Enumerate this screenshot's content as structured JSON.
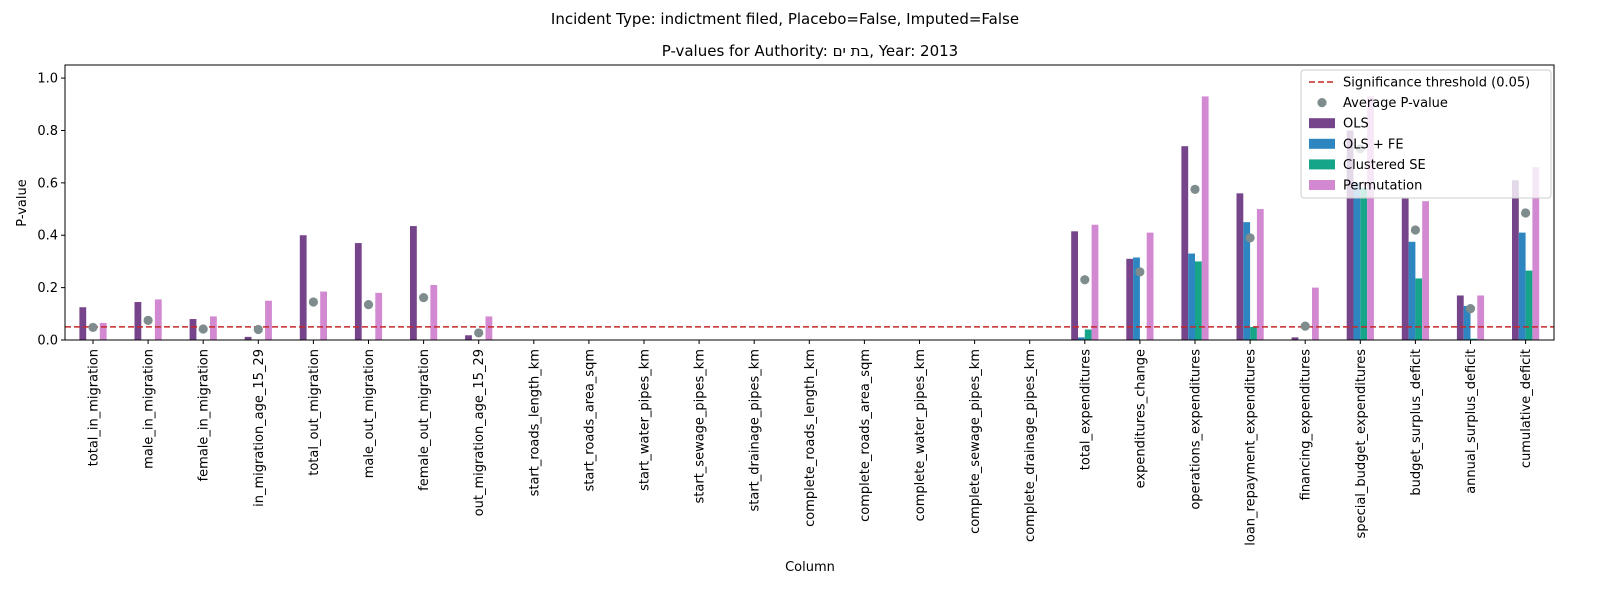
{
  "chart_data": {
    "type": "bar",
    "suptitle": "Incident Type: indictment filed, Placebo=False, Imputed=False",
    "title": "P-values for Authority: בת ים, Year: 2013",
    "xlabel": "Column",
    "ylabel": "P-value",
    "ylim": [
      0,
      1.05
    ],
    "yticks": [
      "0.0",
      "0.2",
      "0.4",
      "0.6",
      "0.8",
      "1.0"
    ],
    "legend_position": "top-right",
    "threshold": {
      "value": 0.05,
      "label": "Significance threshold (0.05)",
      "color": "#c62828"
    },
    "average": {
      "label": "Average P-value",
      "color": "#7f8c8d"
    },
    "categories": [
      "total_in_migration",
      "male_in_migration",
      "female_in_migration",
      "in_migration_age_15_29",
      "total_out_migration",
      "male_out_migration",
      "female_out_migration",
      "out_migration_age_15_29",
      "start_roads_length_km",
      "start_roads_area_sqm",
      "start_water_pipes_km",
      "start_sewage_pipes_km",
      "start_drainage_pipes_km",
      "complete_roads_length_km",
      "complete_roads_area_sqm",
      "complete_water_pipes_km",
      "complete_sewage_pipes_km",
      "complete_drainage_pipes_km",
      "total_expenditures",
      "expenditures_change",
      "operations_expenditures",
      "loan_repayment_expenditures",
      "financing_expenditures",
      "special_budget_expenditures",
      "budget_surplus_deficit",
      "annual_surplus_deficit",
      "cumulative_deficit"
    ],
    "series": [
      {
        "name": "OLS",
        "color": "#76448a",
        "values": [
          0.125,
          0.145,
          0.08,
          0.012,
          0.4,
          0.37,
          0.435,
          0.018,
          null,
          null,
          null,
          null,
          null,
          null,
          null,
          null,
          null,
          null,
          0.415,
          0.31,
          0.74,
          0.56,
          0.01,
          0.8,
          0.54,
          0.17,
          0.61
        ]
      },
      {
        "name": "OLS + FE",
        "color": "#2e86c1",
        "values": [
          0.0,
          0.0,
          0.0,
          0.0,
          0.0,
          0.0,
          0.0,
          0.0,
          null,
          null,
          null,
          null,
          null,
          null,
          null,
          null,
          null,
          null,
          0.01,
          0.315,
          0.33,
          0.45,
          0.0,
          0.6,
          0.375,
          0.13,
          0.41
        ]
      },
      {
        "name": "Clustered SE",
        "color": "#17a589",
        "values": [
          0.0,
          0.0,
          0.0,
          0.0,
          0.0,
          0.0,
          0.0,
          0.0,
          null,
          null,
          null,
          null,
          null,
          null,
          null,
          null,
          null,
          null,
          0.04,
          0.0,
          0.3,
          0.05,
          0.0,
          0.58,
          0.235,
          0.005,
          0.265
        ]
      },
      {
        "name": "Permutation",
        "color": "#d289d1",
        "values": [
          0.065,
          0.155,
          0.09,
          0.15,
          0.185,
          0.18,
          0.21,
          0.09,
          null,
          null,
          null,
          null,
          null,
          null,
          null,
          null,
          null,
          null,
          0.44,
          0.41,
          0.93,
          0.5,
          0.2,
          0.93,
          0.53,
          0.17,
          0.66
        ]
      }
    ],
    "average_values": [
      0.048,
      0.075,
      0.042,
      0.04,
      0.145,
      0.135,
      0.162,
      0.027,
      null,
      null,
      null,
      null,
      null,
      null,
      null,
      null,
      null,
      null,
      0.23,
      0.26,
      0.575,
      0.39,
      0.053,
      0.73,
      0.42,
      0.12,
      0.485
    ]
  }
}
